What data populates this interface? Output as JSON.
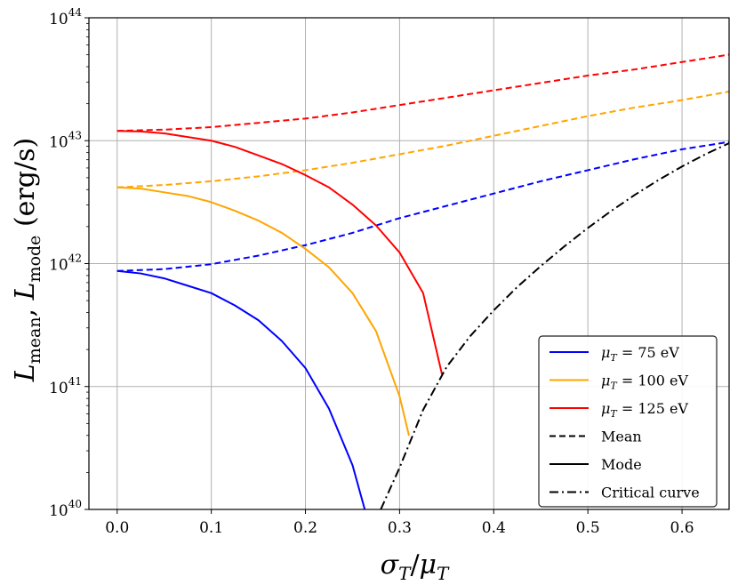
{
  "chart_data": {
    "type": "line",
    "xlabel": "σT/μT",
    "ylabel": "Lmean, Lmode (erg/s)",
    "xlim": [
      -0.03,
      0.65
    ],
    "ylim_log10": [
      40,
      44
    ],
    "y_scale": "log",
    "grid": true,
    "legend_position": "bottom-right",
    "x_ticks": [
      0.0,
      0.1,
      0.2,
      0.3,
      0.4,
      0.5,
      0.6
    ],
    "x_tick_labels": [
      "0.0",
      "0.1",
      "0.2",
      "0.3",
      "0.4",
      "0.5",
      "0.6"
    ],
    "y_ticks_log10": [
      40,
      41,
      42,
      43,
      44
    ],
    "y_tick_labels": [
      {
        "base": "10",
        "exp": "40"
      },
      {
        "base": "10",
        "exp": "41"
      },
      {
        "base": "10",
        "exp": "42"
      },
      {
        "base": "10",
        "exp": "43"
      },
      {
        "base": "10",
        "exp": "44"
      }
    ],
    "series": [
      {
        "name": "μT = 75 eV",
        "kind": "mean",
        "color": "#0000ff",
        "dash": "dashed",
        "x": [
          0.0,
          0.05,
          0.1,
          0.15,
          0.2,
          0.25,
          0.3,
          0.35,
          0.4,
          0.45,
          0.5,
          0.55,
          0.6,
          0.65
        ],
        "log10_y": [
          41.94,
          41.955,
          41.995,
          42.065,
          42.15,
          42.25,
          42.37,
          42.47,
          42.57,
          42.67,
          42.76,
          42.85,
          42.93,
          42.99
        ]
      },
      {
        "name": "μT = 100 eV",
        "kind": "mean",
        "color": "#ffa500",
        "dash": "dashed",
        "x": [
          0.0,
          0.05,
          0.1,
          0.15,
          0.2,
          0.25,
          0.3,
          0.35,
          0.4,
          0.45,
          0.5,
          0.55,
          0.6,
          0.65
        ],
        "log10_y": [
          42.62,
          42.64,
          42.67,
          42.71,
          42.76,
          42.82,
          42.89,
          42.96,
          43.04,
          43.12,
          43.2,
          43.27,
          43.33,
          43.4
        ]
      },
      {
        "name": "μT = 125 eV",
        "kind": "mean",
        "color": "#ff0000",
        "dash": "dashed",
        "x": [
          0.0,
          0.05,
          0.1,
          0.15,
          0.2,
          0.25,
          0.3,
          0.35,
          0.4,
          0.45,
          0.5,
          0.55,
          0.6,
          0.65
        ],
        "log10_y": [
          43.08,
          43.09,
          43.11,
          43.145,
          43.18,
          43.23,
          43.29,
          43.35,
          43.41,
          43.47,
          43.53,
          43.58,
          43.64,
          43.7
        ]
      },
      {
        "name": "μT = 75 eV",
        "kind": "mode",
        "color": "#0000ff",
        "dash": "solid",
        "x": [
          0.0,
          0.025,
          0.05,
          0.075,
          0.1,
          0.125,
          0.15,
          0.175,
          0.2,
          0.225,
          0.25,
          0.263
        ],
        "log10_y": [
          41.94,
          41.92,
          41.88,
          41.82,
          41.76,
          41.66,
          41.54,
          41.37,
          41.15,
          40.82,
          40.36,
          40.0
        ]
      },
      {
        "name": "μT = 100 eV",
        "kind": "mode",
        "color": "#ffa500",
        "dash": "solid",
        "x": [
          0.0,
          0.025,
          0.05,
          0.075,
          0.1,
          0.125,
          0.15,
          0.175,
          0.2,
          0.225,
          0.25,
          0.275,
          0.3,
          0.31
        ],
        "log10_y": [
          42.62,
          42.61,
          42.58,
          42.55,
          42.5,
          42.43,
          42.35,
          42.25,
          42.12,
          41.97,
          41.76,
          41.45,
          40.92,
          40.6
        ]
      },
      {
        "name": "μT = 125 eV",
        "kind": "mode",
        "color": "#ff0000",
        "dash": "solid",
        "x": [
          0.0,
          0.025,
          0.05,
          0.075,
          0.1,
          0.125,
          0.15,
          0.175,
          0.2,
          0.225,
          0.25,
          0.275,
          0.3,
          0.325,
          0.345
        ],
        "log10_y": [
          43.08,
          43.075,
          43.06,
          43.03,
          43.0,
          42.95,
          42.88,
          42.81,
          42.72,
          42.62,
          42.48,
          42.31,
          42.09,
          41.76,
          41.1
        ]
      },
      {
        "name": "Critical curve",
        "kind": "critical",
        "color": "#000000",
        "dash": "dashdot",
        "x": [
          0.28,
          0.3,
          0.325,
          0.35,
          0.375,
          0.4,
          0.425,
          0.45,
          0.475,
          0.5,
          0.525,
          0.55,
          0.575,
          0.6,
          0.625,
          0.65
        ],
        "log10_y": [
          40.0,
          40.34,
          40.81,
          41.16,
          41.41,
          41.62,
          41.81,
          41.98,
          42.14,
          42.29,
          42.43,
          42.56,
          42.68,
          42.79,
          42.89,
          42.98
        ]
      }
    ],
    "legend": [
      {
        "label_pre": "μ",
        "label_sub": "T",
        "label_post": " = 75 eV",
        "color": "#0000ff",
        "dash": "solid"
      },
      {
        "label_pre": "μ",
        "label_sub": "T",
        "label_post": " = 100 eV",
        "color": "#ffa500",
        "dash": "solid"
      },
      {
        "label_pre": "μ",
        "label_sub": "T",
        "label_post": " = 125 eV",
        "color": "#ff0000",
        "dash": "solid"
      },
      {
        "label_pre": "Mean",
        "label_sub": "",
        "label_post": "",
        "color": "#000000",
        "dash": "dashed"
      },
      {
        "label_pre": "Mode",
        "label_sub": "",
        "label_post": "",
        "color": "#000000",
        "dash": "solid"
      },
      {
        "label_pre": "Critical curve",
        "label_sub": "",
        "label_post": "",
        "color": "#000000",
        "dash": "dashdot"
      }
    ]
  }
}
